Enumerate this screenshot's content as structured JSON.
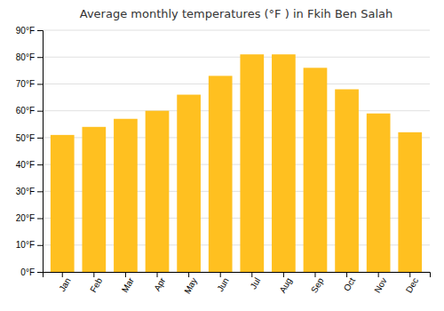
{
  "chart_data": {
    "type": "bar",
    "title": "Average monthly temperatures (°F ) in Fkih Ben Salah",
    "categories": [
      "Jan",
      "Feb",
      "Mar",
      "Apr",
      "May",
      "Jun",
      "Jul",
      "Aug",
      "Sep",
      "Oct",
      "Nov",
      "Dec"
    ],
    "values": [
      51,
      54,
      57,
      60,
      66,
      73,
      81,
      81,
      76,
      68,
      59,
      52
    ],
    "color": "#FFC020",
    "ylim": [
      0,
      90
    ],
    "yticks": [
      {
        "value": 0,
        "label": "0°F"
      },
      {
        "value": 10,
        "label": "10°F"
      },
      {
        "value": 20,
        "label": "20°F"
      },
      {
        "value": 30,
        "label": "30°F"
      },
      {
        "value": 40,
        "label": "40°F"
      },
      {
        "value": 50,
        "label": "50°F"
      },
      {
        "value": 60,
        "label": "60°F"
      },
      {
        "value": 70,
        "label": "70°F"
      },
      {
        "value": 80,
        "label": "80°F"
      },
      {
        "value": 90,
        "label": "90°F"
      }
    ],
    "grid": true
  }
}
